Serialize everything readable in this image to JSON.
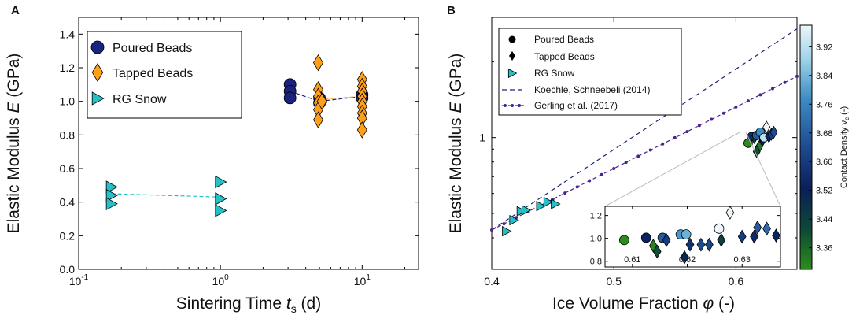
{
  "colors": {
    "poured": "#1a237e",
    "tapped": "#ff9f1a",
    "snow": "#26c0c8",
    "koechle": "#1f2370",
    "gerling": "#4b2390",
    "cmap": [
      "#2e8b1e",
      "#0e4a36",
      "#0a1f57",
      "#1e4a8f",
      "#3f8cc4",
      "#9ed3e8",
      "#eef6fb"
    ]
  },
  "chart_data": [
    {
      "panel": "A",
      "type": "scatter",
      "xscale": "log",
      "xlabel_pre": "Sintering Time ",
      "xlabel_var": "t",
      "xlabel_sub": "s",
      "xlabel_post": " (d)",
      "ylabel_pre": "Elastic Modulus ",
      "ylabel_var": "E",
      "ylabel_post": " (GPa)",
      "xlim": [
        0.1,
        25
      ],
      "ylim": [
        0.0,
        1.5
      ],
      "xticks": [
        {
          "v": 0.1,
          "base": "10",
          "exp": "-1"
        },
        {
          "v": 1,
          "base": "10",
          "exp": "0"
        },
        {
          "v": 10,
          "base": "10",
          "exp": "1"
        }
      ],
      "yticks": [
        0.0,
        0.2,
        0.4,
        0.6,
        0.8,
        1.0,
        1.2,
        1.4
      ],
      "legend": [
        "Poured Beads",
        "Tapped Beads",
        "RG Snow"
      ],
      "series": [
        {
          "name": "Poured Beads",
          "marker": "circle",
          "color": "poured",
          "points": [
            [
              3.1,
              1.1
            ],
            [
              3.1,
              1.06
            ],
            [
              3.1,
              1.02
            ],
            [
              5.0,
              1.02
            ],
            [
              5.0,
              0.99
            ],
            [
              10.0,
              1.04
            ],
            [
              10.0,
              1.02
            ]
          ],
          "trend": [
            [
              3.1,
              1.06
            ],
            [
              5.0,
              1.0
            ],
            [
              10.0,
              1.03
            ]
          ]
        },
        {
          "name": "Tapped Beads",
          "marker": "diamond",
          "color": "tapped",
          "points": [
            [
              4.9,
              1.23
            ],
            [
              4.9,
              1.07
            ],
            [
              4.9,
              1.03
            ],
            [
              4.9,
              0.99
            ],
            [
              4.9,
              0.95
            ],
            [
              4.9,
              0.89
            ],
            [
              5.2,
              1.0
            ],
            [
              10.0,
              1.13
            ],
            [
              10.0,
              1.09
            ],
            [
              10.0,
              1.06
            ],
            [
              10.0,
              1.03
            ],
            [
              10.0,
              1.0
            ],
            [
              10.0,
              0.97
            ],
            [
              10.0,
              0.93
            ],
            [
              10.0,
              0.9
            ],
            [
              10.0,
              0.83
            ]
          ],
          "trend": [
            [
              4.9,
              1.01
            ],
            [
              10.0,
              1.03
            ]
          ]
        },
        {
          "name": "RG Snow",
          "marker": "triangle-right",
          "color": "snow",
          "points": [
            [
              0.17,
              0.49
            ],
            [
              0.17,
              0.44
            ],
            [
              0.17,
              0.39
            ],
            [
              1.0,
              0.52
            ],
            [
              1.0,
              0.42
            ],
            [
              1.0,
              0.35
            ]
          ],
          "trend": [
            [
              0.17,
              0.45
            ],
            [
              1.0,
              0.43
            ]
          ]
        }
      ]
    },
    {
      "panel": "B",
      "type": "scatter",
      "yscale": "log",
      "xlabel_pre": "Ice Volume Fraction ",
      "xlabel_var": "φ",
      "xlabel_post": " (-)",
      "ylabel_pre": "Elastic Modulus ",
      "ylabel_var": "E",
      "ylabel_post": " (GPa)",
      "xlim": [
        0.4,
        0.65
      ],
      "ylim": [
        0.3,
        3.0
      ],
      "xticks": [
        "0.4",
        "0.5",
        "0.6"
      ],
      "xtick_values": [
        0.4,
        0.5,
        0.6
      ],
      "yticks": [
        "1"
      ],
      "ytick_values": [
        1.0
      ],
      "legend": [
        "Poured Beads",
        "Tapped Beads",
        "RG Snow",
        "Koechle,  Schneebeli (2014)",
        "Gerling et al. (2017)"
      ],
      "lines": [
        {
          "name": "Koechle,  Schneebeli (2014)",
          "style": "dashed",
          "color": "koechle",
          "x": [
            0.4,
            0.65
          ],
          "y": [
            0.43,
            2.7
          ]
        },
        {
          "name": "Gerling et al. (2017)",
          "style": "dash-dot",
          "color": "gerling",
          "x": [
            0.4,
            0.65
          ],
          "y": [
            0.43,
            1.75
          ],
          "dot_step": 0.01
        }
      ],
      "snow_points": [
        [
          0.412,
          0.425
        ],
        [
          0.418,
          0.47
        ],
        [
          0.424,
          0.51
        ],
        [
          0.428,
          0.515
        ],
        [
          0.44,
          0.535
        ],
        [
          0.446,
          0.555
        ],
        [
          0.452,
          0.545
        ]
      ],
      "cluster_points": [
        {
          "x": 0.61,
          "y": 0.95,
          "m": "circle",
          "c": 0.0
        },
        {
          "x": 0.613,
          "y": 1.01,
          "m": "circle",
          "c": 0.4
        },
        {
          "x": 0.615,
          "y": 1.0,
          "m": "diamond",
          "c": 0.2
        },
        {
          "x": 0.617,
          "y": 1.02,
          "m": "circle",
          "c": 0.55
        },
        {
          "x": 0.619,
          "y": 0.92,
          "m": "diamond",
          "c": 0.05
        },
        {
          "x": 0.62,
          "y": 1.05,
          "m": "circle",
          "c": 0.7
        },
        {
          "x": 0.622,
          "y": 0.98,
          "m": "diamond",
          "c": 0.3
        },
        {
          "x": 0.623,
          "y": 1.0,
          "m": "circle",
          "c": 0.92
        },
        {
          "x": 0.625,
          "y": 1.1,
          "m": "diamond",
          "c": 1.0
        },
        {
          "x": 0.627,
          "y": 1.01,
          "m": "diamond",
          "c": 0.35
        },
        {
          "x": 0.629,
          "y": 1.03,
          "m": "diamond",
          "c": 0.45
        },
        {
          "x": 0.631,
          "y": 1.05,
          "m": "diamond",
          "c": 0.5
        },
        {
          "x": 0.617,
          "y": 0.88,
          "m": "diamond",
          "c": 0.15
        }
      ],
      "inset": {
        "xlim": [
          0.605,
          0.637
        ],
        "ylim": [
          0.75,
          1.28
        ],
        "xticks": [
          "0.61",
          "0.62",
          "0.63"
        ],
        "xtick_values": [
          0.61,
          0.62,
          0.63
        ],
        "yticks": [
          "0.8",
          "1.0",
          "1.2"
        ],
        "ytick_values": [
          0.8,
          1.0,
          1.2
        ],
        "points": [
          {
            "x": 0.6085,
            "y": 0.985,
            "m": "circle",
            "c": 0.0
          },
          {
            "x": 0.6125,
            "y": 1.005,
            "m": "circle",
            "c": 0.35
          },
          {
            "x": 0.6138,
            "y": 0.935,
            "m": "diamond",
            "c": 0.02
          },
          {
            "x": 0.6145,
            "y": 0.885,
            "m": "diamond",
            "c": 0.15
          },
          {
            "x": 0.6155,
            "y": 1.005,
            "m": "circle",
            "c": 0.55
          },
          {
            "x": 0.6162,
            "y": 0.985,
            "m": "diamond",
            "c": 0.45
          },
          {
            "x": 0.6188,
            "y": 1.035,
            "m": "circle",
            "c": 0.72
          },
          {
            "x": 0.6198,
            "y": 1.035,
            "m": "circle",
            "c": 0.78
          },
          {
            "x": 0.6195,
            "y": 0.835,
            "m": "diamond",
            "c": 0.3
          },
          {
            "x": 0.6205,
            "y": 0.945,
            "m": "diamond",
            "c": 0.4
          },
          {
            "x": 0.6225,
            "y": 0.945,
            "m": "diamond",
            "c": 0.5
          },
          {
            "x": 0.624,
            "y": 0.945,
            "m": "diamond",
            "c": 0.48
          },
          {
            "x": 0.6258,
            "y": 1.085,
            "m": "circle",
            "c": 1.0
          },
          {
            "x": 0.6262,
            "y": 0.985,
            "m": "diamond",
            "c": 0.2
          },
          {
            "x": 0.6278,
            "y": 1.225,
            "m": "diamond",
            "c": 1.0
          },
          {
            "x": 0.63,
            "y": 1.015,
            "m": "diamond",
            "c": 0.45
          },
          {
            "x": 0.6322,
            "y": 1.015,
            "m": "diamond",
            "c": 0.38
          },
          {
            "x": 0.6328,
            "y": 1.095,
            "m": "diamond",
            "c": 0.55
          },
          {
            "x": 0.6345,
            "y": 1.085,
            "m": "diamond",
            "c": 0.6
          },
          {
            "x": 0.6362,
            "y": 1.025,
            "m": "diamond",
            "c": 0.35
          }
        ]
      },
      "colorbar": {
        "label": "Contact Density ν",
        "label_sub": "c",
        "label_post": " (-)",
        "vmin": 3.3,
        "vmax": 3.98,
        "ticks": [
          "3.36",
          "3.44",
          "3.52",
          "3.60",
          "3.68",
          "3.76",
          "3.84",
          "3.92"
        ],
        "tick_values": [
          3.36,
          3.44,
          3.52,
          3.6,
          3.68,
          3.76,
          3.84,
          3.92
        ]
      }
    }
  ]
}
